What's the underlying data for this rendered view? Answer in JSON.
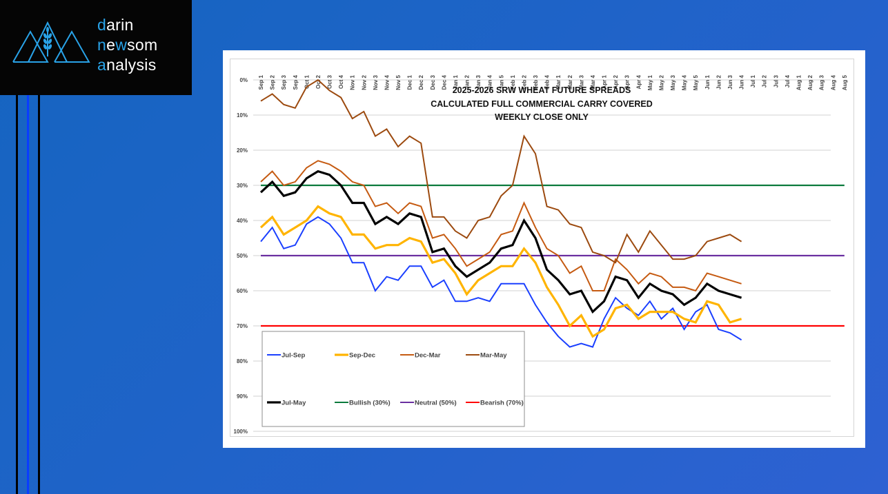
{
  "logo": {
    "lines": [
      {
        "accent": "d",
        "rest": "arin"
      },
      {
        "accent_parts": [
          "n",
          "e",
          "w",
          "som"
        ]
      },
      {
        "accent": "a",
        "rest": "nalysis"
      }
    ],
    "line1_accent": "d",
    "line1_rest": "arin",
    "line2_a": "n",
    "line2_b": "e",
    "line2_c": "w",
    "line2_d": "som",
    "line3_accent": "a",
    "line3_rest": "nalysis",
    "accent_color": "#29a3e8",
    "icon": "mountains-wheat-icon"
  },
  "colors": {
    "Jul-Sep": "#1a3fff",
    "Sep-Dec": "#ffb400",
    "Dec-Mar": "#c55a11",
    "Mar-May": "#9c4a0f",
    "Jul-May": "#000000",
    "Bullish (30%)": "#0a7a3c",
    "Neutral (50%)": "#6a2fa0",
    "Bearish (70%)": "#ff0000"
  },
  "chart_data": {
    "type": "line",
    "title": [
      "2025-2026 SRW WHEAT FUTURE SPREADS",
      "CALCULATED FULL COMMERCIAL CARRY COVERED",
      "WEEKLY CLOSE ONLY"
    ],
    "xlabel": "",
    "ylabel": "",
    "y_axis_inverted": true,
    "ylim": [
      0,
      100
    ],
    "y_ticks": [
      "0%",
      "10%",
      "20%",
      "30%",
      "40%",
      "50%",
      "60%",
      "70%",
      "80%",
      "90%",
      "100%"
    ],
    "grid": true,
    "legend_placement": "bottom-left (inside plot)",
    "categories": [
      "Sep 1",
      "Sep 2",
      "Sep 3",
      "Sep 4",
      "Oct 1",
      "Oct 2",
      "Oct 3",
      "Oct 4",
      "Nov 1",
      "Nov 2",
      "Nov 3",
      "Nov 4",
      "Nov 5",
      "Dec 1",
      "Dec 2",
      "Dec 3",
      "Dec 4",
      "Jan 1",
      "Jan 2",
      "Jan 3",
      "Jan 4",
      "Jan 5",
      "Feb 1",
      "Feb 2",
      "Feb 3",
      "Feb 4",
      "Mar 1",
      "Mar 2",
      "Mar 3",
      "Mar 4",
      "Apr 1",
      "Apr 2",
      "Apr 3",
      "Apr 4",
      "May 1",
      "May 2",
      "May 3",
      "May 4",
      "May 5",
      "Jun 1",
      "Jun 2",
      "Jun 3",
      "Jun 4",
      "Jul 1",
      "Jul 2",
      "Jul 3",
      "Jul 4",
      "Aug 1",
      "Aug 2",
      "Aug 3",
      "Aug 4",
      "Aug 5"
    ],
    "series": [
      {
        "name": "Jul-Sep",
        "width": "thin",
        "values": [
          46,
          42,
          48,
          47,
          41,
          39,
          41,
          45,
          52,
          52,
          60,
          56,
          57,
          53,
          53,
          59,
          57,
          63,
          63,
          62,
          63,
          58,
          58,
          58,
          64,
          69,
          73,
          76,
          75,
          76,
          68,
          62,
          65,
          67,
          63,
          68,
          65,
          71,
          66,
          64,
          71,
          72,
          74
        ]
      },
      {
        "name": "Sep-Dec",
        "width": "thick",
        "values": [
          42,
          39,
          44,
          42,
          40,
          36,
          38,
          39,
          44,
          44,
          48,
          47,
          47,
          45,
          46,
          52,
          51,
          55,
          61,
          57,
          55,
          53,
          53,
          48,
          52,
          59,
          64,
          70,
          67,
          73,
          71,
          65,
          64,
          68,
          66,
          66,
          66,
          68,
          69,
          63,
          64,
          69,
          68
        ]
      },
      {
        "name": "Dec-Mar",
        "width": "thin",
        "values": [
          29,
          26,
          30,
          29,
          25,
          23,
          24,
          26,
          29,
          30,
          36,
          35,
          38,
          35,
          36,
          45,
          44,
          48,
          53,
          51,
          49,
          44,
          43,
          35,
          42,
          48,
          50,
          55,
          53,
          60,
          60,
          51,
          54,
          58,
          55,
          56,
          59,
          59,
          60,
          55,
          56,
          57,
          58
        ]
      },
      {
        "name": "Mar-May",
        "width": "thin",
        "values": [
          6,
          4,
          7,
          8,
          2,
          0,
          3,
          5,
          11,
          9,
          16,
          14,
          19,
          16,
          18,
          39,
          39,
          43,
          45,
          40,
          39,
          33,
          30,
          16,
          21,
          36,
          37,
          41,
          42,
          49,
          50,
          52,
          44,
          49,
          43,
          47,
          51,
          51,
          50,
          46,
          45,
          44,
          46
        ]
      },
      {
        "name": "Jul-May",
        "width": "thick",
        "values": [
          32,
          29,
          33,
          32,
          28,
          26,
          27,
          30,
          35,
          35,
          41,
          39,
          41,
          38,
          39,
          49,
          48,
          53,
          56,
          54,
          52,
          48,
          47,
          40,
          45,
          54,
          57,
          61,
          60,
          66,
          63,
          56,
          57,
          62,
          58,
          60,
          61,
          64,
          62,
          58,
          60,
          61,
          62
        ]
      }
    ],
    "reference_lines": [
      {
        "name": "Bullish (30%)",
        "value": 30
      },
      {
        "name": "Neutral (50%)",
        "value": 50
      },
      {
        "name": "Bearish (70%)",
        "value": 70
      }
    ],
    "legend": [
      "Jul-Sep",
      "Sep-Dec",
      "Dec-Mar",
      "Mar-May",
      "Jul-May",
      "Bullish (30%)",
      "Neutral (50%)",
      "Bearish (70%)"
    ]
  }
}
